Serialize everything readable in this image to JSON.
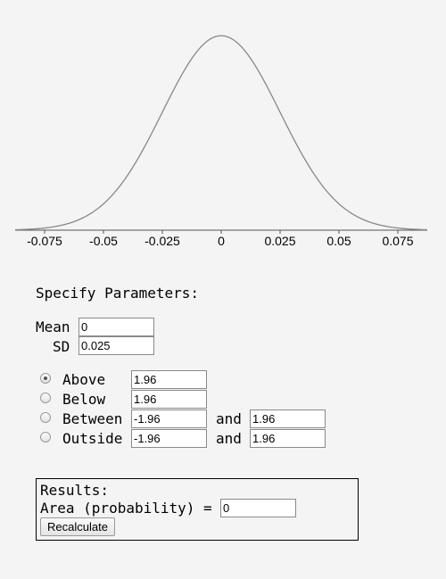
{
  "chart_data": {
    "type": "line",
    "mean": 0,
    "sd": 0.025,
    "xlim": [
      -0.0875,
      0.0875
    ],
    "ticks": [
      -0.075,
      -0.05,
      -0.025,
      0,
      0.025,
      0.05,
      0.075
    ],
    "tick_labels": [
      "-0.075",
      "-0.05",
      "-0.025",
      "0",
      "0.025",
      "0.05",
      "0.075"
    ],
    "colors": {
      "curve": "#888888",
      "axis": "#555555"
    }
  },
  "params": {
    "heading": "Specify Parameters:",
    "mean_label": "Mean",
    "mean_value": "0",
    "sd_label": "SD",
    "sd_value": "0.025"
  },
  "options": {
    "selected": "above",
    "and_label": "and",
    "above": {
      "label": "Above",
      "value": "1.96"
    },
    "below": {
      "label": "Below",
      "value": "1.96"
    },
    "between": {
      "label": "Between",
      "low": "-1.96",
      "high": "1.96"
    },
    "outside": {
      "label": "Outside",
      "low": "-1.96",
      "high": "1.96"
    }
  },
  "results": {
    "heading": "Results:",
    "area_label": "Area (probability) =",
    "area_value": "0",
    "button_label": "Recalculate"
  }
}
